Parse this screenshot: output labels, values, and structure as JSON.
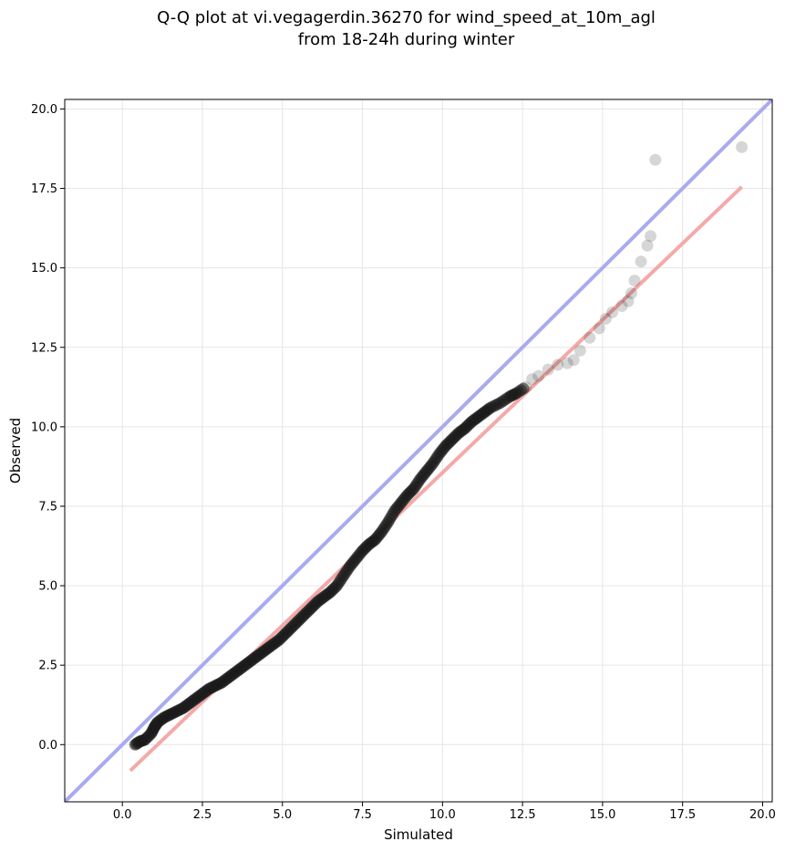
{
  "chart_data": {
    "type": "scatter",
    "title_line1": "Q-Q plot at vi.vegagerdin.36270 for wind_speed_at_10m_agl",
    "title_line2": "from 18-24h during winter",
    "xlabel": "Simulated",
    "ylabel": "Observed",
    "xlim": [
      -1.8,
      20.3
    ],
    "ylim": [
      -1.8,
      20.3
    ],
    "xticks": [
      0.0,
      2.5,
      5.0,
      7.5,
      10.0,
      12.5,
      15.0,
      17.5,
      20.0
    ],
    "yticks": [
      0.0,
      2.5,
      5.0,
      7.5,
      10.0,
      12.5,
      15.0,
      17.5,
      20.0
    ],
    "tick_labels": [
      "0.0",
      "2.5",
      "5.0",
      "7.5",
      "10.0",
      "12.5",
      "15.0",
      "17.5",
      "20.0"
    ],
    "grid": true,
    "reference_line": {
      "name": "1:1",
      "color": "#aaaaf0",
      "points": [
        [
          -1.8,
          -1.8
        ],
        [
          20.3,
          20.3
        ]
      ]
    },
    "fit_line": {
      "name": "fit",
      "color": "#f4a9a9",
      "points": [
        [
          0.25,
          -0.82
        ],
        [
          19.35,
          17.55
        ]
      ]
    },
    "point_color": "#1a1a1a",
    "series": [
      {
        "values": [
          [
            0.4,
            0.0
          ],
          [
            0.55,
            0.1
          ],
          [
            0.7,
            0.15
          ],
          [
            0.9,
            0.35
          ],
          [
            1.0,
            0.55
          ],
          [
            1.1,
            0.7
          ],
          [
            1.3,
            0.85
          ],
          [
            1.5,
            0.95
          ],
          [
            1.7,
            1.05
          ],
          [
            1.9,
            1.15
          ],
          [
            2.1,
            1.3
          ],
          [
            2.3,
            1.45
          ],
          [
            2.5,
            1.6
          ],
          [
            2.7,
            1.75
          ],
          [
            2.9,
            1.85
          ],
          [
            3.1,
            1.95
          ],
          [
            3.3,
            2.1
          ],
          [
            3.5,
            2.25
          ],
          [
            3.7,
            2.4
          ],
          [
            3.9,
            2.55
          ],
          [
            4.1,
            2.7
          ],
          [
            4.3,
            2.85
          ],
          [
            4.5,
            3.0
          ],
          [
            4.7,
            3.15
          ],
          [
            4.9,
            3.3
          ],
          [
            5.1,
            3.5
          ],
          [
            5.3,
            3.7
          ],
          [
            5.5,
            3.9
          ],
          [
            5.7,
            4.1
          ],
          [
            5.9,
            4.3
          ],
          [
            6.1,
            4.5
          ],
          [
            6.3,
            4.65
          ],
          [
            6.5,
            4.8
          ],
          [
            6.7,
            5.0
          ],
          [
            6.9,
            5.3
          ],
          [
            7.1,
            5.6
          ],
          [
            7.3,
            5.85
          ],
          [
            7.5,
            6.1
          ],
          [
            7.7,
            6.3
          ],
          [
            7.9,
            6.45
          ],
          [
            8.1,
            6.7
          ],
          [
            8.3,
            7.0
          ],
          [
            8.5,
            7.35
          ],
          [
            8.7,
            7.6
          ],
          [
            8.9,
            7.85
          ],
          [
            9.1,
            8.05
          ],
          [
            9.3,
            8.35
          ],
          [
            9.5,
            8.6
          ],
          [
            9.7,
            8.85
          ],
          [
            9.9,
            9.15
          ],
          [
            10.1,
            9.4
          ],
          [
            10.3,
            9.6
          ],
          [
            10.5,
            9.8
          ],
          [
            10.7,
            9.95
          ],
          [
            10.9,
            10.15
          ],
          [
            11.1,
            10.3
          ],
          [
            11.3,
            10.45
          ],
          [
            11.5,
            10.6
          ],
          [
            11.8,
            10.75
          ],
          [
            12.1,
            10.95
          ],
          [
            12.3,
            11.05
          ],
          [
            12.6,
            11.25
          ],
          [
            12.8,
            11.5
          ],
          [
            13.0,
            11.6
          ],
          [
            13.3,
            11.8
          ],
          [
            13.6,
            11.95
          ],
          [
            13.9,
            12.0
          ],
          [
            14.1,
            12.1
          ],
          [
            14.3,
            12.4
          ],
          [
            14.6,
            12.8
          ],
          [
            14.9,
            13.1
          ],
          [
            15.1,
            13.4
          ],
          [
            15.3,
            13.6
          ],
          [
            15.6,
            13.8
          ],
          [
            15.8,
            13.95
          ],
          [
            15.9,
            14.2
          ],
          [
            16.0,
            14.6
          ],
          [
            16.2,
            15.2
          ],
          [
            16.4,
            15.7
          ],
          [
            16.5,
            16.0
          ],
          [
            16.65,
            18.4
          ],
          [
            19.35,
            18.8
          ]
        ]
      }
    ]
  }
}
